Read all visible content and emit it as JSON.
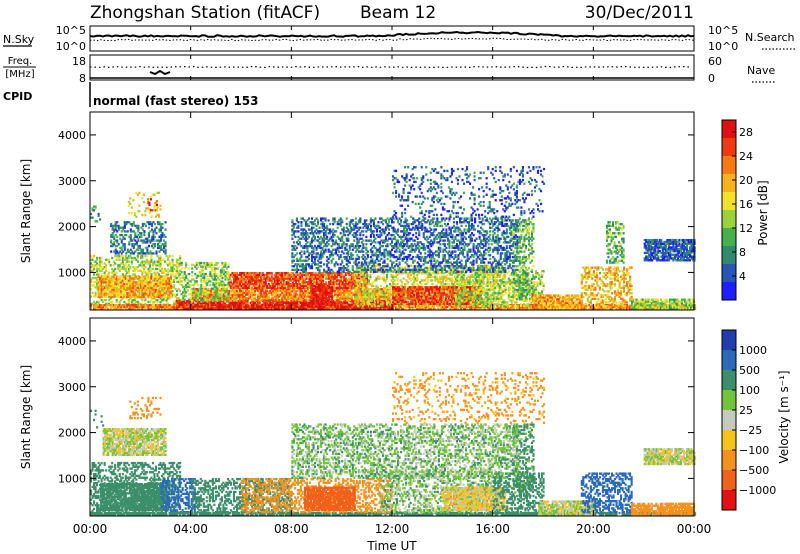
{
  "header": {
    "station": "Zhongshan Station (fitACF)",
    "beam": "Beam 12",
    "date": "30/Dec/2011"
  },
  "sky_panel": {
    "left_label": "N.Sky",
    "left_ticks": [
      "10^5",
      "10^0"
    ],
    "right_ticks": [
      "10^5",
      "10^0"
    ],
    "right_label": "N.Search"
  },
  "freq_panel": {
    "left_label_top": "Freq.",
    "left_label_bottom": "[MHz]",
    "left_ticks": [
      "18",
      "8"
    ],
    "right_ticks": [
      "60",
      "0"
    ],
    "right_label": "Nave"
  },
  "cpid": {
    "label": "CPID",
    "mode": "normal (fast stereo) 153"
  },
  "time_axis": {
    "label": "Time UT",
    "ticks": [
      "00:00",
      "04:00",
      "08:00",
      "12:00",
      "16:00",
      "20:00",
      "00:00"
    ]
  },
  "chart_data": [
    {
      "type": "heatmap",
      "name": "power",
      "ylabel": "Slant Range [km]",
      "yticks": [
        "1000",
        "2000",
        "3000",
        "4000"
      ],
      "ylim": [
        180,
        4500
      ],
      "xlim_hours": [
        0,
        24
      ],
      "colorbar": {
        "label": "Power [dB]",
        "ticks": [
          "4",
          "8",
          "12",
          "16",
          "20",
          "24",
          "28"
        ],
        "range": [
          0,
          30
        ],
        "colors": [
          "#1f1cff",
          "#2a55b8",
          "#2f8a70",
          "#46b04a",
          "#9bd23c",
          "#f2e22a",
          "#f5b21a",
          "#f57a14",
          "#ee3a10",
          "#e01010"
        ]
      },
      "regions": [
        {
          "t0": 0.0,
          "t1": 3.6,
          "r0": 300,
          "r1": 1350,
          "v": 14
        },
        {
          "t0": 0.3,
          "t1": 3.2,
          "r0": 450,
          "r1": 900,
          "v": 20
        },
        {
          "t0": 0.0,
          "t1": 0.4,
          "r0": 2100,
          "r1": 2500,
          "v": 9
        },
        {
          "t0": 0.8,
          "t1": 3.0,
          "r0": 1400,
          "r1": 2100,
          "v": 7
        },
        {
          "t0": 1.5,
          "t1": 2.8,
          "r0": 2200,
          "r1": 2750,
          "v": 16
        },
        {
          "t0": 2.2,
          "t1": 2.7,
          "r0": 2300,
          "r1": 2600,
          "v": 24
        },
        {
          "t0": 0.0,
          "t1": 24.0,
          "r0": 190,
          "r1": 280,
          "v": 22
        },
        {
          "t0": 3.4,
          "t1": 12.0,
          "r0": 200,
          "r1": 380,
          "v": 28
        },
        {
          "t0": 4.0,
          "t1": 12.5,
          "r0": 380,
          "r1": 650,
          "v": 22
        },
        {
          "t0": 5.5,
          "t1": 11.0,
          "r0": 650,
          "r1": 1000,
          "v": 25
        },
        {
          "t0": 8.8,
          "t1": 9.6,
          "r0": 300,
          "r1": 700,
          "v": 29
        },
        {
          "t0": 3.6,
          "t1": 5.5,
          "r0": 350,
          "r1": 1200,
          "v": 13
        },
        {
          "t0": 10.5,
          "t1": 16.5,
          "r0": 250,
          "r1": 1150,
          "v": 16
        },
        {
          "t0": 12.0,
          "t1": 15.5,
          "r0": 300,
          "r1": 700,
          "v": 25
        },
        {
          "t0": 14.5,
          "t1": 18.0,
          "r0": 250,
          "r1": 1050,
          "v": 14
        },
        {
          "t0": 16.8,
          "t1": 17.6,
          "r0": 400,
          "r1": 2200,
          "v": 11
        },
        {
          "t0": 17.5,
          "t1": 19.5,
          "r0": 200,
          "r1": 500,
          "v": 20
        },
        {
          "t0": 19.5,
          "t1": 21.5,
          "r0": 250,
          "r1": 1100,
          "v": 19
        },
        {
          "t0": 20.5,
          "t1": 21.2,
          "r0": 1200,
          "r1": 2100,
          "v": 11
        },
        {
          "t0": 21.5,
          "t1": 24.0,
          "r0": 190,
          "r1": 400,
          "v": 13
        },
        {
          "t0": 22.0,
          "t1": 24.0,
          "r0": 1250,
          "r1": 1700,
          "v": 5
        },
        {
          "t0": 8.0,
          "t1": 17.0,
          "r0": 1000,
          "r1": 2200,
          "v": 6
        },
        {
          "t0": 12.0,
          "t1": 18.0,
          "r0": 2200,
          "r1": 3300,
          "v": 5
        }
      ]
    },
    {
      "type": "heatmap",
      "name": "velocity",
      "ylabel": "Slant Range [km]",
      "yticks": [
        "1000",
        "2000",
        "3000",
        "4000"
      ],
      "ylim": [
        180,
        4500
      ],
      "xlim_hours": [
        0,
        24
      ],
      "colorbar": {
        "label": "Velocity [m s⁻¹]",
        "ticks": [
          "1000",
          "500",
          "100",
          "25",
          "−25",
          "−100",
          "−500",
          "−1000"
        ],
        "levels": [
          1000,
          500,
          100,
          25,
          -25,
          -100,
          -500,
          -1000
        ],
        "colors": [
          "#1f3fae",
          "#2a6ab8",
          "#3d8f6a",
          "#72c43c",
          "#c6c9be",
          "#f6c21d",
          "#f39220",
          "#f0611b",
          "#e21212"
        ]
      },
      "regions": [
        {
          "t0": 0.0,
          "t1": 3.6,
          "r0": 200,
          "r1": 1350,
          "v": 200
        },
        {
          "t0": 0.4,
          "t1": 3.0,
          "r0": 300,
          "r1": 900,
          "v": 400
        },
        {
          "t0": 2.8,
          "t1": 4.2,
          "r0": 250,
          "r1": 1000,
          "v": 800
        },
        {
          "t0": 0.0,
          "t1": 0.5,
          "r0": 2100,
          "r1": 2500,
          "v": 300
        },
        {
          "t0": 0.5,
          "t1": 3.0,
          "r0": 1500,
          "r1": 2100,
          "v": 10
        },
        {
          "t0": 1.5,
          "t1": 2.8,
          "r0": 2300,
          "r1": 2750,
          "v": -200
        },
        {
          "t0": 0.0,
          "t1": 24.0,
          "r0": 190,
          "r1": 260,
          "v": 300
        },
        {
          "t0": 4.0,
          "t1": 8.0,
          "r0": 250,
          "r1": 1000,
          "v": 300
        },
        {
          "t0": 6.0,
          "t1": 12.0,
          "r0": 250,
          "r1": 1000,
          "v": -250
        },
        {
          "t0": 8.5,
          "t1": 10.5,
          "r0": 300,
          "r1": 800,
          "v": -600
        },
        {
          "t0": 11.5,
          "t1": 16.0,
          "r0": 250,
          "r1": 1150,
          "v": 50
        },
        {
          "t0": 14.0,
          "t1": 16.5,
          "r0": 300,
          "r1": 800,
          "v": -40
        },
        {
          "t0": 16.0,
          "t1": 18.0,
          "r0": 250,
          "r1": 1100,
          "v": 250
        },
        {
          "t0": 16.8,
          "t1": 17.6,
          "r0": 600,
          "r1": 2200,
          "v": 150
        },
        {
          "t0": 17.8,
          "t1": 20.0,
          "r0": 200,
          "r1": 500,
          "v": 10
        },
        {
          "t0": 19.5,
          "t1": 21.5,
          "r0": 250,
          "r1": 1100,
          "v": 600
        },
        {
          "t0": 21.5,
          "t1": 24.0,
          "r0": 190,
          "r1": 450,
          "v": -200
        },
        {
          "t0": 22.0,
          "t1": 24.0,
          "r0": 1300,
          "r1": 1650,
          "v": 5
        },
        {
          "t0": 8.0,
          "t1": 17.0,
          "r0": 1000,
          "r1": 2200,
          "v": 60
        },
        {
          "t0": 12.0,
          "t1": 18.0,
          "r0": 2200,
          "r1": 3300,
          "v": -150
        }
      ]
    }
  ]
}
